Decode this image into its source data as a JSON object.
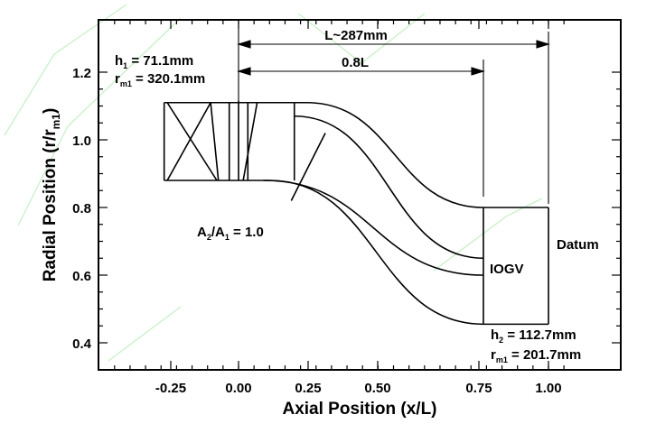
{
  "figure": {
    "x_axis_title": "Axial Position (x/L)",
    "y_axis_title": {
      "main": "Radial Position (r/r",
      "sub": "m1",
      "close": ")"
    },
    "x_ticks": [
      "-0.25",
      "0.00",
      "0.25",
      "0.50",
      "0.75",
      "1.00"
    ],
    "y_ticks": [
      "0.4",
      "0.6",
      "0.8",
      "1.0",
      "1.2"
    ],
    "annotations": {
      "length_total": "L~287mm",
      "length_partial": "0.8L",
      "inlet_h_label": "h",
      "inlet_h_sub": "1",
      "inlet_h_value": " = 71.1mm",
      "inlet_r_label": "r",
      "inlet_r_sub": "m1",
      "inlet_r_value": " = 320.1mm",
      "area_ratio_a2": "A",
      "area_ratio_a2_sub": "2",
      "area_ratio_slash": "/A",
      "area_ratio_a1_sub": "1",
      "area_ratio_value": " = 1.0",
      "iogv": "IOGV",
      "datum": "Datum",
      "outlet_h_label": "h",
      "outlet_h_sub": "2",
      "outlet_h_value": " = 112.7mm",
      "outlet_r_label": "r",
      "outlet_r_sub": "m1",
      "outlet_r_value": " = 201.7mm"
    },
    "axes": {
      "x_range": [
        -0.45,
        1.09
      ],
      "y_range": [
        0.34,
        1.34
      ]
    },
    "geometry": {
      "inlet_shroud_r": 1.11,
      "inlet_hub_r": 0.88,
      "duct_start_x": 0.18,
      "iogv_x": 0.79,
      "datum_x": 1.0,
      "iogv_shroud_r": 0.8,
      "iogv_hub_r": 0.455,
      "datum_shroud_r": 0.8,
      "datum_hub_r": 0.455
    }
  }
}
